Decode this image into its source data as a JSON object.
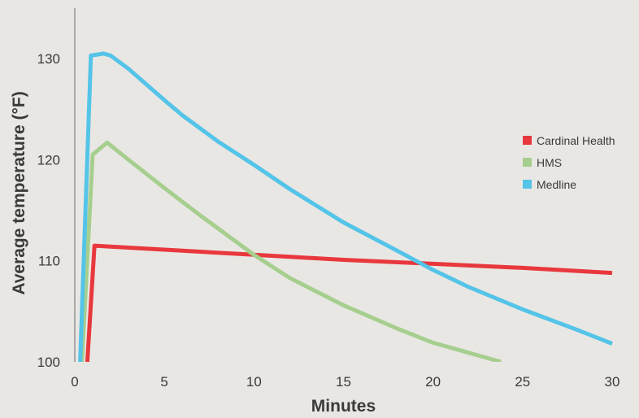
{
  "chart_data": {
    "type": "line",
    "title": "",
    "xlabel": "Minutes",
    "ylabel": "Average temperature (°F)",
    "xlim": [
      0,
      31
    ],
    "ylim": [
      100,
      135
    ],
    "x_ticks": [
      0,
      5,
      10,
      15,
      20,
      25,
      30
    ],
    "y_ticks": [
      100,
      110,
      120,
      130
    ],
    "grid": false,
    "legend_position": "right",
    "series": [
      {
        "name": "Cardinal Health",
        "color": "#e8383d",
        "x": [
          0.7,
          1.1,
          5,
          10,
          15,
          20,
          25,
          30
        ],
        "y": [
          100,
          111.5,
          111.1,
          110.6,
          110.1,
          109.7,
          109.3,
          108.8
        ]
      },
      {
        "name": "HMS",
        "color": "#a6cf8f",
        "x": [
          0.4,
          1,
          1.8,
          3,
          5,
          7,
          10,
          12,
          15,
          18,
          20,
          22,
          23.8
        ],
        "y": [
          100,
          120.5,
          121.7,
          120,
          117.2,
          114.5,
          110.6,
          108.3,
          105.6,
          103.3,
          101.9,
          100.9,
          100
        ]
      },
      {
        "name": "Medline",
        "color": "#54c4e8",
        "x": [
          0.3,
          0.9,
          1.6,
          2,
          3,
          5,
          6,
          8,
          10,
          12,
          15,
          18,
          20,
          22,
          25,
          28,
          30
        ],
        "y": [
          100,
          130.3,
          130.5,
          130.3,
          129,
          125.9,
          124.4,
          121.8,
          119.5,
          117.1,
          113.8,
          111,
          109.1,
          107.4,
          105.2,
          103.2,
          101.8
        ]
      }
    ]
  }
}
